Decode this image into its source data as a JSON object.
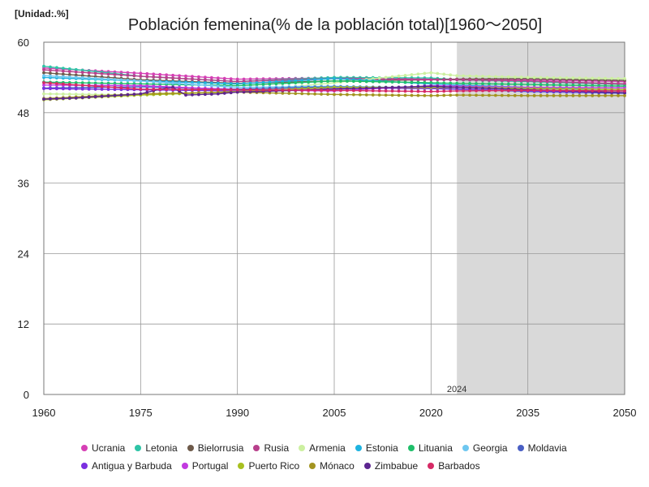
{
  "unit_label": "[Unidad:.%]",
  "chart_data": {
    "type": "line",
    "title": "Población femenina(% de la población total)[1960〜2050]",
    "xlim": [
      1960,
      2050
    ],
    "ylim": [
      0,
      60
    ],
    "x_ticks": [
      "1960",
      "1975",
      "1990",
      "2005",
      "2020",
      "2035",
      "2050"
    ],
    "y_ticks": [
      "0",
      "12",
      "24",
      "36",
      "48",
      "60"
    ],
    "forecast_start": 2024,
    "forecast_label": "2024",
    "legend_position": "bottom",
    "grid": true,
    "series": [
      {
        "name": "Ucrania",
        "color": "#d63fb5",
        "x": [
          1960,
          1975,
          1990,
          2005,
          2020,
          2024,
          2035,
          2050
        ],
        "y": [
          55.6,
          54.7,
          53.7,
          53.9,
          53.7,
          53.7,
          53.6,
          53.3
        ]
      },
      {
        "name": "Letonia",
        "color": "#2ec4a6",
        "x": [
          1960,
          1975,
          1990,
          2005,
          2020,
          2024,
          2035,
          2050
        ],
        "y": [
          55.9,
          54.2,
          53.3,
          54.0,
          53.9,
          53.6,
          53.3,
          52.8
        ]
      },
      {
        "name": "Bielorrusia",
        "color": "#6e5a4a",
        "x": [
          1960,
          1975,
          1990,
          2005,
          2020,
          2024,
          2035,
          2050
        ],
        "y": [
          54.8,
          53.6,
          53.0,
          53.4,
          53.6,
          53.7,
          53.8,
          53.5
        ]
      },
      {
        "name": "Rusia",
        "color": "#b8408c",
        "x": [
          1960,
          1975,
          1990,
          2005,
          2020,
          2024,
          2035,
          2050
        ],
        "y": [
          55.3,
          54.2,
          53.3,
          53.8,
          53.6,
          53.6,
          53.4,
          52.9
        ]
      },
      {
        "name": "Armenia",
        "color": "#ccf0a0",
        "x": [
          1960,
          1975,
          1990,
          2005,
          2020,
          2024,
          2035,
          2050
        ],
        "y": [
          51.2,
          51.0,
          51.5,
          53.1,
          54.8,
          54.3,
          54.0,
          53.8
        ]
      },
      {
        "name": "Estonia",
        "color": "#1eb3e0",
        "x": [
          1960,
          1975,
          1990,
          2005,
          2020,
          2024,
          2035,
          2050
        ],
        "y": [
          54.0,
          53.4,
          52.9,
          53.8,
          52.9,
          52.7,
          52.3,
          51.8
        ]
      },
      {
        "name": "Lituania",
        "color": "#1fbf6a",
        "x": [
          1960,
          1975,
          1990,
          2005,
          2020,
          2024,
          2035,
          2050
        ],
        "y": [
          53.2,
          52.9,
          52.6,
          53.4,
          53.1,
          53.0,
          52.8,
          52.5
        ]
      },
      {
        "name": "Georgia",
        "color": "#6ec7f0",
        "x": [
          1960,
          1975,
          1990,
          2005,
          2020,
          2024,
          2035,
          2050
        ],
        "y": [
          54.3,
          53.4,
          52.3,
          52.5,
          52.2,
          52.3,
          52.1,
          51.8
        ]
      },
      {
        "name": "Moldavia",
        "color": "#4a5fc4",
        "x": [
          1960,
          1975,
          1990,
          2005,
          2020,
          2024,
          2035,
          2050
        ],
        "y": [
          52.2,
          52.4,
          52.0,
          52.4,
          52.2,
          52.0,
          51.6,
          51.3
        ]
      },
      {
        "name": "Antigua y Barbuda",
        "color": "#7b2fe0",
        "x": [
          1960,
          1975,
          1990,
          2005,
          2020,
          2024,
          2035,
          2050
        ],
        "y": [
          52.1,
          51.9,
          51.7,
          52.2,
          52.1,
          52.0,
          51.7,
          51.4
        ]
      },
      {
        "name": "Portugal",
        "color": "#c23ae0",
        "x": [
          1960,
          1975,
          1990,
          2005,
          2020,
          2024,
          2035,
          2050
        ],
        "y": [
          52.7,
          52.6,
          51.9,
          51.7,
          52.6,
          52.5,
          52.3,
          52.2
        ]
      },
      {
        "name": "Puerto Rico",
        "color": "#a8c020",
        "x": [
          1960,
          1975,
          1990,
          2005,
          2020,
          2024,
          2035,
          2050
        ],
        "y": [
          50.2,
          51.0,
          51.6,
          52.3,
          52.3,
          52.3,
          52.1,
          51.9
        ]
      },
      {
        "name": "Mónaco",
        "color": "#a39420",
        "x": [
          1960,
          1975,
          1990,
          2005,
          2020,
          2024,
          2035,
          2050
        ],
        "y": [
          50.4,
          51.2,
          51.5,
          51.1,
          50.9,
          51.0,
          50.9,
          50.9
        ]
      },
      {
        "name": "Zimbabue",
        "color": "#5c2590",
        "x": [
          1960,
          1965,
          1975,
          1978,
          1980,
          1982,
          1987,
          1990,
          2005,
          2020,
          2024,
          2035,
          2050
        ],
        "y": [
          50.3,
          50.5,
          51.2,
          52.0,
          52.3,
          51.0,
          51.2,
          51.5,
          52.0,
          52.5,
          52.3,
          51.9,
          51.4
        ]
      },
      {
        "name": "Barbados",
        "color": "#d62a66",
        "x": [
          1960,
          1975,
          1990,
          2005,
          2020,
          2024,
          2035,
          2050
        ],
        "y": [
          53.1,
          52.0,
          51.9,
          51.8,
          51.6,
          51.7,
          51.8,
          51.7
        ]
      }
    ]
  }
}
